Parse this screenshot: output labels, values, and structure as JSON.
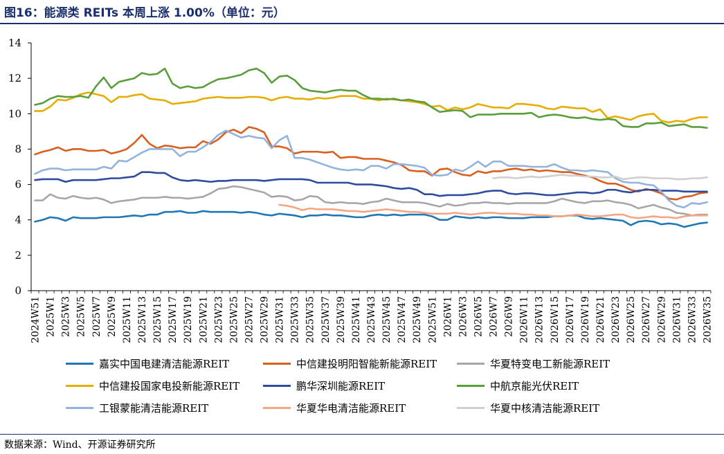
{
  "title": "图16：能源类 REITs 本周上涨 1.00%（单位：元）",
  "source": "数据来源：Wind、开源证券研究所",
  "chart_data": {
    "type": "line",
    "ylim": [
      0,
      14
    ],
    "yticks": [
      0,
      2,
      4,
      6,
      8,
      10,
      12,
      14
    ],
    "x": [
      "2024W51",
      "2024W52",
      "2025W1",
      "2025W2",
      "2025W3",
      "2025W4",
      "2025W5",
      "2025W6",
      "2025W7",
      "2025W8",
      "2025W9",
      "2025W10",
      "2025W11",
      "2025W12",
      "2025W13",
      "2025W14",
      "2025W15",
      "2025W16",
      "2025W17",
      "2025W18",
      "2025W19",
      "2025W20",
      "2025W21",
      "2025W22",
      "2025W23",
      "2025W24",
      "2025W25",
      "2025W26",
      "2025W27",
      "2025W28",
      "2025W29",
      "2025W30",
      "2025W31",
      "2025W32",
      "2025W33",
      "2025W34",
      "2025W35",
      "2025W36",
      "2025W37",
      "2025W38",
      "2025W39",
      "2025W40",
      "2025W41",
      "2025W42",
      "2025W43",
      "2025W44",
      "2025W45",
      "2025W46",
      "2025W47",
      "2025W48",
      "2025W49",
      "2025W50",
      "2025W51",
      "2025W52",
      "2026W1",
      "2026W2",
      "2026W3",
      "2026W4",
      "2026W5",
      "2026W6",
      "2026W7",
      "2026W8",
      "2026W9",
      "2026W10",
      "2026W11",
      "2026W12",
      "2026W13",
      "2026W14",
      "2026W15",
      "2026W16",
      "2026W17",
      "2026W18",
      "2026W19",
      "2026W20",
      "2026W21",
      "2026W22",
      "2026W23",
      "2026W24",
      "2026W25",
      "2026W26",
      "2026W27",
      "2026W28",
      "2026W29",
      "2026W30",
      "2026W31",
      "2026W32",
      "2026W33",
      "2026W34",
      "2026W35"
    ],
    "xtick_labels": [
      "2024W51",
      "2025W1",
      "2025W3",
      "2025W5",
      "2025W7",
      "2025W9",
      "2025W11",
      "2025W13",
      "2025W15",
      "2025W17",
      "2025W19",
      "2025W21",
      "2025W23",
      "2025W25",
      "2025W27",
      "2025W29",
      "2025W31",
      "2025W33",
      "2025W35",
      "2025W37",
      "2025W39",
      "2025W41",
      "2025W43",
      "2025W45",
      "2025W47",
      "2025W49",
      "2025W51",
      "2026W1",
      "2026W3",
      "2026W5",
      "2026W7",
      "2026W9",
      "2026W11",
      "2026W13",
      "2026W15",
      "2026W17",
      "2026W19",
      "2026W21",
      "2026W23",
      "2026W25",
      "2026W27",
      "2026W29",
      "2026W31",
      "2026W33",
      "2026W35"
    ],
    "legend_position": "bottom",
    "grid": false,
    "series": [
      {
        "name": "嘉实中国电建清洁能源REIT",
        "color": "#1f77b4",
        "values": [
          3.9,
          4.0,
          4.15,
          4.1,
          3.95,
          4.15,
          4.1,
          4.1,
          4.1,
          4.15,
          4.15,
          4.15,
          4.2,
          4.25,
          4.2,
          4.3,
          4.3,
          4.45,
          4.45,
          4.5,
          4.4,
          4.4,
          4.5,
          4.45,
          4.45,
          4.45,
          4.45,
          4.4,
          4.45,
          4.4,
          4.3,
          4.25,
          4.35,
          4.3,
          4.25,
          4.15,
          4.25,
          4.25,
          4.3,
          4.25,
          4.25,
          4.2,
          4.15,
          4.15,
          4.25,
          4.3,
          4.25,
          4.3,
          4.25,
          4.3,
          4.3,
          4.3,
          4.2,
          4.0,
          4.0,
          4.2,
          4.15,
          4.1,
          4.15,
          4.1,
          4.15,
          4.15,
          4.1,
          4.1,
          4.1,
          4.15,
          4.15,
          4.15,
          4.2,
          4.2,
          4.25,
          4.25,
          4.1,
          4.05,
          4.1,
          4.05,
          4.0,
          3.95,
          3.7,
          3.9,
          3.95,
          3.9,
          3.75,
          3.8,
          3.75,
          3.6,
          3.7,
          3.8,
          3.85
        ]
      },
      {
        "name": "中信建投明阳智能新能源REIT",
        "color": "#d95f1f",
        "values": [
          7.7,
          7.85,
          7.95,
          8.1,
          7.9,
          8.0,
          8.0,
          7.9,
          7.9,
          7.95,
          7.75,
          7.85,
          8.0,
          8.35,
          8.8,
          8.3,
          8.05,
          8.2,
          8.15,
          8.05,
          8.1,
          8.1,
          8.45,
          8.3,
          8.55,
          8.95,
          9.1,
          8.9,
          9.25,
          9.15,
          8.95,
          8.15,
          8.15,
          8.05,
          7.75,
          7.85,
          7.85,
          7.85,
          7.8,
          7.85,
          7.5,
          7.55,
          7.55,
          7.45,
          7.45,
          7.45,
          7.35,
          7.25,
          7.1,
          6.8,
          6.75,
          6.75,
          6.5,
          6.85,
          6.9,
          6.7,
          6.55,
          6.5,
          6.75,
          6.65,
          6.75,
          6.75,
          6.85,
          6.9,
          6.8,
          6.85,
          6.75,
          6.8,
          6.75,
          6.7,
          6.7,
          6.6,
          6.5,
          6.4,
          6.2,
          6.05,
          6.05,
          5.9,
          5.7,
          5.6,
          5.75,
          5.65,
          5.5,
          5.2,
          5.15,
          5.3,
          5.35,
          5.5,
          5.55
        ]
      },
      {
        "name": "华夏特变电工新能源REIT",
        "color": "#a6a6a6",
        "values": [
          5.1,
          5.1,
          5.45,
          5.25,
          5.2,
          5.35,
          5.25,
          5.2,
          5.25,
          5.15,
          4.95,
          5.05,
          5.1,
          5.15,
          5.25,
          5.25,
          5.25,
          5.3,
          5.25,
          5.25,
          5.2,
          5.25,
          5.3,
          5.5,
          5.75,
          5.8,
          5.9,
          5.85,
          5.75,
          5.65,
          5.55,
          5.3,
          5.35,
          5.3,
          5.1,
          5.15,
          5.35,
          5.3,
          5.0,
          4.95,
          5.0,
          4.95,
          4.95,
          4.9,
          5.0,
          5.05,
          5.2,
          5.1,
          5.0,
          5.0,
          5.0,
          4.95,
          4.85,
          4.75,
          4.9,
          4.8,
          4.85,
          4.95,
          4.95,
          5.0,
          4.95,
          4.95,
          4.9,
          4.95,
          4.95,
          4.95,
          4.95,
          4.95,
          5.05,
          5.2,
          5.1,
          5.0,
          4.95,
          5.05,
          5.05,
          5.1,
          5.0,
          4.95,
          4.85,
          4.65,
          4.75,
          4.85,
          4.7,
          4.6,
          4.4,
          4.35,
          4.25,
          4.3,
          4.3
        ]
      },
      {
        "name": "中信建投国家电投新能源REIT",
        "color": "#e6ac00",
        "values": [
          10.15,
          10.15,
          10.4,
          10.8,
          10.75,
          10.9,
          11.1,
          11.2,
          11.1,
          11.0,
          10.65,
          10.95,
          10.95,
          11.05,
          11.1,
          10.85,
          10.8,
          10.75,
          10.55,
          10.6,
          10.65,
          10.7,
          10.85,
          10.9,
          10.95,
          10.9,
          10.9,
          10.9,
          10.95,
          10.95,
          10.9,
          10.75,
          10.9,
          10.95,
          10.85,
          10.85,
          10.8,
          10.9,
          10.85,
          10.9,
          11.0,
          11.0,
          11.0,
          10.85,
          10.85,
          10.75,
          10.85,
          10.8,
          10.75,
          10.7,
          10.65,
          10.55,
          10.4,
          10.45,
          10.2,
          10.35,
          10.25,
          10.35,
          10.55,
          10.45,
          10.35,
          10.35,
          10.3,
          10.55,
          10.55,
          10.5,
          10.45,
          10.3,
          10.25,
          10.4,
          10.35,
          10.3,
          10.3,
          10.1,
          10.25,
          9.75,
          9.85,
          9.75,
          9.65,
          9.85,
          9.95,
          10.0,
          9.6,
          9.5,
          9.6,
          9.55,
          9.7,
          9.8,
          9.8
        ]
      },
      {
        "name": "鹏华深圳能源REIT",
        "color": "#2f4b9e",
        "values": [
          6.25,
          6.3,
          6.3,
          6.3,
          6.15,
          6.25,
          6.25,
          6.25,
          6.25,
          6.3,
          6.35,
          6.35,
          6.4,
          6.45,
          6.7,
          6.7,
          6.65,
          6.65,
          6.4,
          6.25,
          6.2,
          6.25,
          6.2,
          6.15,
          6.2,
          6.2,
          6.25,
          6.25,
          6.25,
          6.25,
          6.2,
          6.25,
          6.3,
          6.3,
          6.3,
          6.3,
          6.25,
          6.1,
          6.1,
          6.1,
          6.1,
          6.1,
          6.0,
          6.0,
          6.0,
          5.95,
          5.9,
          5.8,
          5.75,
          5.8,
          5.7,
          5.45,
          5.45,
          5.35,
          5.4,
          5.4,
          5.4,
          5.45,
          5.5,
          5.6,
          5.65,
          5.65,
          5.5,
          5.45,
          5.5,
          5.5,
          5.45,
          5.4,
          5.4,
          5.45,
          5.5,
          5.55,
          5.55,
          5.5,
          5.55,
          5.7,
          5.7,
          5.6,
          5.55,
          5.65,
          5.7,
          5.7,
          5.65,
          5.65,
          5.65,
          5.6,
          5.6,
          5.6,
          5.6
        ]
      },
      {
        "name": "中航京能光伏REIT",
        "color": "#5a9e3c",
        "values": [
          10.5,
          10.6,
          10.85,
          11.0,
          10.95,
          10.95,
          11.0,
          10.9,
          11.55,
          12.05,
          11.45,
          11.8,
          11.9,
          12.0,
          12.3,
          12.2,
          12.25,
          12.55,
          11.7,
          11.45,
          11.55,
          11.45,
          11.5,
          11.75,
          11.95,
          12.0,
          12.1,
          12.2,
          12.45,
          12.55,
          12.3,
          11.75,
          12.1,
          12.15,
          11.9,
          11.45,
          11.3,
          11.25,
          11.2,
          11.3,
          11.35,
          11.3,
          11.3,
          11.05,
          10.85,
          10.85,
          10.8,
          10.85,
          10.75,
          10.8,
          10.7,
          10.65,
          10.35,
          10.1,
          10.15,
          10.2,
          10.15,
          9.8,
          9.95,
          9.95,
          9.95,
          10.0,
          10.0,
          10.0,
          10.0,
          10.05,
          9.8,
          9.9,
          9.95,
          9.9,
          9.8,
          9.75,
          9.8,
          9.7,
          9.65,
          9.7,
          9.65,
          9.3,
          9.25,
          9.25,
          9.45,
          9.45,
          9.5,
          9.3,
          9.35,
          9.4,
          9.25,
          9.25,
          9.2
        ]
      },
      {
        "name": "工银蒙能清洁能源REIT",
        "color": "#93b3de",
        "values": [
          6.6,
          6.8,
          6.9,
          6.9,
          6.8,
          6.85,
          6.85,
          6.85,
          6.85,
          7.0,
          6.9,
          7.35,
          7.3,
          7.55,
          7.8,
          8.0,
          8.0,
          8.0,
          8.0,
          7.6,
          7.85,
          7.85,
          8.1,
          8.4,
          8.8,
          9.05,
          8.85,
          8.65,
          8.75,
          8.65,
          8.6,
          8.05,
          8.5,
          8.75,
          7.5,
          7.5,
          7.4,
          7.25,
          7.1,
          6.95,
          6.85,
          6.8,
          6.85,
          6.8,
          7.05,
          7.05,
          6.9,
          7.15,
          7.15,
          7.1,
          7.05,
          6.95,
          6.55,
          6.5,
          6.55,
          6.85,
          6.75,
          7.0,
          7.3,
          7.0,
          7.3,
          7.3,
          7.05,
          7.05,
          7.05,
          7.0,
          7.0,
          7.0,
          7.15,
          6.95,
          6.8,
          6.8,
          6.75,
          6.8,
          6.75,
          6.7,
          6.35,
          6.15,
          6.1,
          6.1,
          6.0,
          5.95,
          5.6,
          5.1,
          4.8,
          4.7,
          4.95,
          4.9,
          5.0
        ]
      },
      {
        "name": "华夏华电清洁能源REIT",
        "color": "#f4a582",
        "values": [
          null,
          null,
          null,
          null,
          null,
          null,
          null,
          null,
          null,
          null,
          null,
          null,
          null,
          null,
          null,
          null,
          null,
          null,
          null,
          null,
          null,
          null,
          null,
          null,
          null,
          null,
          null,
          null,
          null,
          null,
          null,
          null,
          4.85,
          4.8,
          4.7,
          4.55,
          4.65,
          4.6,
          4.6,
          4.6,
          4.55,
          4.5,
          4.5,
          4.45,
          4.5,
          4.55,
          4.6,
          4.55,
          4.5,
          4.45,
          4.45,
          4.4,
          4.35,
          4.35,
          4.35,
          4.4,
          4.35,
          4.3,
          4.35,
          4.4,
          4.4,
          4.35,
          4.35,
          4.35,
          4.3,
          4.3,
          4.25,
          4.25,
          4.2,
          4.2,
          4.25,
          4.3,
          4.25,
          4.2,
          4.2,
          4.25,
          4.3,
          4.3,
          4.15,
          4.1,
          4.15,
          4.2,
          4.15,
          4.15,
          4.1,
          4.2,
          4.25,
          4.25,
          4.25
        ]
      },
      {
        "name": "华夏中核清洁能源REIT",
        "color": "#cfcfcf",
        "values": [
          null,
          null,
          null,
          null,
          null,
          null,
          null,
          null,
          null,
          null,
          null,
          null,
          null,
          null,
          null,
          null,
          null,
          null,
          null,
          null,
          null,
          null,
          null,
          null,
          null,
          null,
          null,
          null,
          null,
          null,
          null,
          null,
          null,
          null,
          null,
          null,
          null,
          null,
          null,
          null,
          null,
          null,
          null,
          null,
          null,
          null,
          null,
          null,
          null,
          null,
          null,
          null,
          null,
          null,
          null,
          null,
          null,
          null,
          null,
          null,
          6.35,
          6.4,
          6.4,
          6.35,
          6.4,
          6.45,
          6.4,
          6.45,
          6.5,
          6.55,
          6.5,
          6.5,
          6.45,
          6.45,
          6.4,
          6.4,
          6.45,
          6.3,
          6.35,
          6.4,
          6.4,
          6.35,
          6.35,
          6.35,
          6.3,
          6.3,
          6.35,
          6.35,
          6.4
        ]
      }
    ]
  }
}
